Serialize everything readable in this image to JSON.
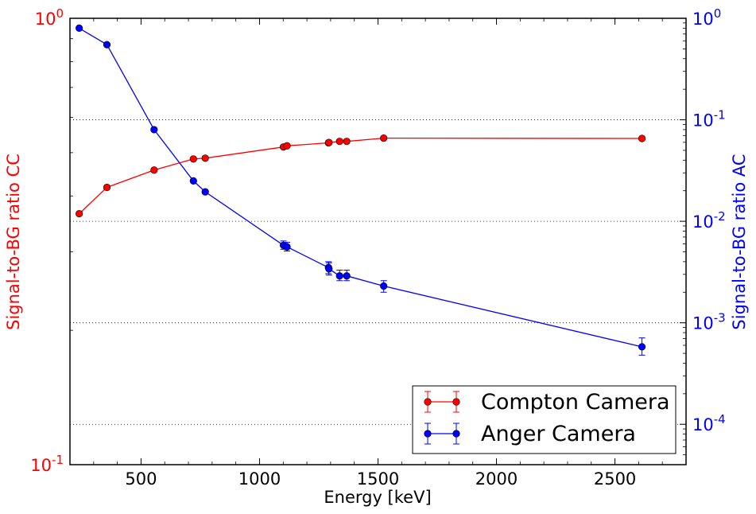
{
  "chart_data": {
    "type": "line",
    "xlabel": "Energy [keV]",
    "ylabel_left": "Signal-to-BG ratio CC",
    "ylabel_right": "Signal-to-BG ratio AC",
    "xlim": [
      200,
      2800
    ],
    "xticks": [
      500,
      1000,
      1500,
      2000,
      2500
    ],
    "left_axis": {
      "scale": "log",
      "ylim": [
        0.1,
        1.0
      ],
      "tick_labels": [
        "10^-1",
        "10^0"
      ],
      "color": "#ff0000"
    },
    "right_axis": {
      "scale": "log",
      "ylim": [
        4e-05,
        1.0
      ],
      "ticks": [
        0.0001,
        0.001,
        0.01,
        0.1,
        1
      ],
      "tick_labels": [
        "10^-4",
        "10^-3",
        "10^-2",
        "10^-1",
        "10^0"
      ],
      "color": "#0000ff"
    },
    "grid": "horizontal dotted at right-axis decades",
    "legend_position": "lower-right",
    "series": [
      {
        "name": "Compton Camera",
        "axis": "left",
        "color": "#ff0000",
        "x": [
          239,
          356,
          555,
          721,
          771,
          1101,
          1116,
          1291,
          1293,
          1338,
          1368,
          1524,
          2614
        ],
        "y": [
          0.365,
          0.418,
          0.457,
          0.484,
          0.486,
          0.515,
          0.518,
          0.526,
          0.527,
          0.53,
          0.53,
          0.539,
          0.538
        ],
        "err": [
          0.002,
          0.002,
          0.002,
          0.002,
          0.002,
          0.002,
          0.002,
          0.002,
          0.002,
          0.002,
          0.002,
          0.002,
          0.002
        ]
      },
      {
        "name": "Anger Camera",
        "axis": "right",
        "color": "#0000ff",
        "x": [
          239,
          356,
          555,
          721,
          771,
          1101,
          1116,
          1291,
          1293,
          1338,
          1368,
          1524,
          2614
        ],
        "y": [
          0.8,
          0.55,
          0.08,
          0.025,
          0.0195,
          0.0058,
          0.0056,
          0.0035,
          0.0034,
          0.0029,
          0.0029,
          0.0023,
          0.00058
        ],
        "err_lo": [
          0.0,
          0.0,
          0.0,
          0.0,
          0.0,
          0.0005,
          0.0005,
          0.00045,
          0.00045,
          0.0003,
          0.0003,
          0.0003,
          0.0001
        ],
        "err_hi": [
          0.0,
          0.0,
          0.0,
          0.0,
          0.0,
          0.0006,
          0.0006,
          0.0005,
          0.0005,
          0.0004,
          0.0004,
          0.0003,
          0.00013
        ]
      }
    ]
  }
}
